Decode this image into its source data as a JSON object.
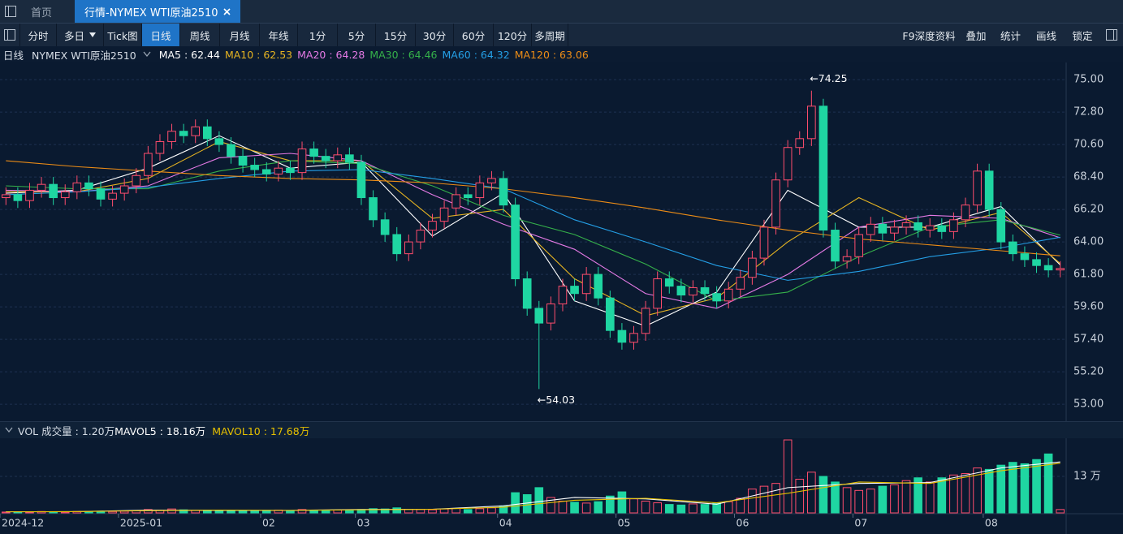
{
  "ui": {
    "tabs": [
      "首页",
      "行情-NYMEX WTI原油2510"
    ],
    "toolbar_left": [
      "分时",
      "多日",
      "Tick图",
      "日线",
      "周线",
      "月线",
      "年线",
      "1分",
      "5分",
      "15分",
      "30分",
      "60分",
      "120分",
      "多周期"
    ],
    "active_index": 3,
    "toolbar_right": [
      "F9深度资料",
      "叠加",
      "统计",
      "画线",
      "锁定"
    ]
  },
  "chart_data": [
    {
      "type": "candlestick",
      "title": "日线",
      "subtitle": "NYMEX WTI原油2510",
      "up_color": "#ff4d6d",
      "down_color": "#1fd6a2",
      "ylim": [
        52.07,
        75.72
      ],
      "yticks": [
        {
          "value": 75,
          "label": "75.00"
        },
        {
          "value": 72.8,
          "label": "72.80"
        },
        {
          "value": 70.6,
          "label": "70.60"
        },
        {
          "value": 68.4,
          "label": "68.40"
        },
        {
          "value": 66.2,
          "label": "66.20"
        },
        {
          "value": 64,
          "label": "64.00"
        },
        {
          "value": 61.8,
          "label": "61.80"
        },
        {
          "value": 59.6,
          "label": "59.60"
        },
        {
          "value": 57.4,
          "label": "57.40"
        },
        {
          "value": 55.2,
          "label": "55.20"
        },
        {
          "value": 53,
          "label": "53.00"
        }
      ],
      "grid": true,
      "open": [
        67.0,
        67.2,
        66.8,
        67.5,
        67.9,
        67.0,
        67.4,
        68.0,
        67.6,
        66.9,
        67.3,
        67.8,
        68.5,
        70.0,
        70.8,
        71.5,
        71.2,
        71.8,
        71.0,
        70.6,
        69.8,
        69.2,
        68.9,
        68.6,
        69.0,
        68.7,
        70.3,
        69.8,
        69.5,
        69.9,
        69.4,
        67.0,
        65.5,
        64.5,
        63.2,
        64.0,
        64.8,
        65.4,
        66.3,
        67.2,
        67.0,
        68.0,
        68.3,
        66.5,
        61.5,
        59.5,
        58.5,
        59.8,
        61.0,
        60.5,
        61.8,
        60.2,
        58.0,
        57.2,
        57.8,
        59.5,
        61.5,
        61.0,
        60.4,
        60.9,
        60.5,
        60.0,
        60.8,
        61.6,
        62.9,
        65.0,
        68.2,
        70.4,
        71.0,
        73.2,
        64.8,
        62.7,
        63.0,
        64.5,
        65.2,
        64.6,
        65.0,
        65.3,
        64.8,
        65.1,
        64.7,
        65.5,
        66.5,
        68.8,
        66.2,
        64.0,
        63.2,
        62.8,
        62.4,
        62.1
      ],
      "high": [
        67.7,
        67.7,
        68.0,
        68.4,
        68.4,
        67.9,
        68.5,
        68.5,
        68.1,
        67.8,
        68.3,
        69.0,
        70.5,
        71.3,
        72.0,
        72.0,
        72.3,
        72.3,
        71.5,
        71.1,
        70.3,
        69.7,
        69.4,
        69.5,
        69.5,
        70.8,
        70.8,
        70.3,
        70.4,
        70.4,
        69.9,
        67.5,
        66.0,
        65.0,
        64.5,
        65.3,
        65.9,
        66.8,
        67.7,
        67.7,
        68.5,
        68.8,
        68.8,
        67.0,
        62.0,
        60.0,
        60.3,
        61.5,
        61.5,
        62.3,
        62.3,
        60.7,
        58.5,
        58.3,
        60.0,
        62.0,
        62.0,
        61.5,
        61.4,
        61.4,
        61.0,
        61.3,
        62.1,
        63.4,
        65.5,
        68.7,
        70.9,
        71.5,
        74.25,
        73.7,
        65.3,
        63.5,
        65.0,
        65.7,
        65.7,
        65.5,
        65.8,
        65.8,
        65.6,
        65.6,
        66.0,
        67.0,
        69.3,
        69.3,
        66.7,
        64.5,
        63.7,
        63.3,
        62.9,
        62.7
      ],
      "low": [
        66.5,
        66.3,
        66.3,
        67.0,
        66.5,
        66.5,
        66.9,
        67.1,
        66.4,
        66.4,
        66.8,
        67.3,
        68.0,
        69.5,
        70.3,
        70.7,
        70.7,
        70.5,
        70.1,
        69.3,
        68.7,
        68.4,
        68.1,
        68.1,
        68.2,
        68.2,
        69.3,
        69.0,
        69.0,
        68.9,
        66.5,
        65.0,
        64.0,
        62.7,
        62.7,
        63.5,
        64.3,
        64.9,
        65.8,
        66.5,
        66.5,
        67.5,
        66.0,
        61.0,
        59.0,
        54.03,
        58.0,
        59.3,
        60.0,
        60.0,
        59.7,
        57.5,
        56.7,
        56.7,
        57.3,
        59.0,
        60.5,
        59.9,
        59.9,
        60.0,
        59.5,
        59.5,
        60.3,
        61.1,
        62.4,
        64.5,
        67.7,
        69.9,
        70.5,
        64.3,
        62.2,
        62.2,
        62.5,
        64.0,
        64.1,
        64.1,
        64.5,
        64.3,
        64.3,
        64.2,
        64.2,
        65.0,
        66.0,
        65.7,
        63.5,
        62.7,
        62.3,
        61.9,
        61.6,
        61.6
      ],
      "close": [
        67.2,
        66.8,
        67.5,
        67.9,
        67.0,
        67.4,
        68.0,
        67.6,
        66.9,
        67.3,
        67.8,
        68.5,
        70.0,
        70.8,
        71.5,
        71.2,
        71.8,
        71.0,
        70.6,
        69.8,
        69.2,
        68.9,
        68.6,
        69.0,
        68.7,
        70.3,
        69.8,
        69.5,
        69.9,
        69.4,
        67.0,
        65.5,
        64.5,
        63.2,
        64.0,
        64.8,
        65.4,
        66.3,
        67.2,
        67.0,
        68.0,
        68.3,
        66.5,
        61.5,
        59.5,
        58.5,
        59.8,
        61.0,
        60.5,
        61.8,
        60.2,
        58.0,
        57.2,
        57.8,
        59.5,
        61.5,
        61.0,
        60.4,
        60.9,
        60.5,
        60.0,
        60.8,
        61.6,
        62.9,
        65.0,
        68.2,
        70.4,
        71.0,
        73.2,
        64.8,
        62.7,
        63.0,
        64.5,
        65.2,
        64.6,
        65.0,
        65.3,
        64.8,
        65.1,
        64.7,
        65.5,
        66.5,
        68.8,
        66.2,
        64.0,
        63.2,
        62.8,
        62.4,
        62.1,
        62.2
      ],
      "series": [
        {
          "name": "MA5 : 62.44",
          "color": "#ffffff",
          "x": [
            0,
            6,
            12,
            18,
            24,
            30,
            36,
            42,
            48,
            54,
            60,
            66,
            72,
            78,
            84,
            89
          ],
          "values": [
            67.3,
            67.5,
            69.0,
            71.2,
            69.0,
            69.4,
            64.4,
            67.3,
            60.0,
            58.3,
            60.6,
            67.5,
            65.0,
            65.0,
            66.4,
            62.44
          ]
        },
        {
          "name": "MA10 : 62.53",
          "color": "#e6b422",
          "x": [
            0,
            6,
            12,
            18,
            24,
            30,
            36,
            42,
            48,
            54,
            60,
            66,
            72,
            78,
            84,
            89
          ],
          "values": [
            67.4,
            67.4,
            68.3,
            70.8,
            69.5,
            69.5,
            65.6,
            66.2,
            61.5,
            59.0,
            60.2,
            64.0,
            67.0,
            64.8,
            66.0,
            62.53
          ]
        },
        {
          "name": "MA20 : 64.28",
          "color": "#e57ae5",
          "x": [
            0,
            6,
            12,
            18,
            24,
            30,
            36,
            42,
            48,
            54,
            60,
            66,
            72,
            78,
            84,
            89
          ],
          "values": [
            67.5,
            67.4,
            67.8,
            69.7,
            70.0,
            69.5,
            67.2,
            65.2,
            63.5,
            60.5,
            59.5,
            61.8,
            65.0,
            65.8,
            65.6,
            64.28
          ]
        },
        {
          "name": "MA30 : 64.46",
          "color": "#35b04a",
          "x": [
            0,
            6,
            12,
            18,
            24,
            30,
            36,
            42,
            48,
            54,
            60,
            66,
            72,
            78,
            84,
            89
          ],
          "values": [
            67.8,
            67.6,
            67.6,
            68.8,
            69.5,
            69.3,
            67.8,
            65.8,
            64.5,
            62.5,
            60.0,
            60.6,
            63.0,
            65.0,
            65.5,
            64.46
          ]
        },
        {
          "name": "MA60 : 64.32",
          "color": "#249fe6",
          "x": [
            0,
            6,
            12,
            18,
            24,
            30,
            36,
            42,
            48,
            54,
            60,
            66,
            72,
            78,
            84,
            89
          ],
          "values": [
            67.2,
            67.4,
            67.7,
            68.3,
            68.8,
            68.9,
            68.3,
            67.6,
            65.5,
            64.0,
            62.4,
            61.4,
            62.0,
            63.0,
            63.6,
            64.32
          ]
        },
        {
          "name": "MA120 : 63.06",
          "color": "#ec8c16",
          "x": [
            0,
            6,
            12,
            18,
            24,
            30,
            36,
            42,
            48,
            54,
            60,
            66,
            72,
            78,
            84,
            89
          ],
          "values": [
            69.5,
            69.1,
            68.8,
            68.5,
            68.3,
            68.2,
            68.0,
            67.6,
            67.0,
            66.3,
            65.5,
            64.8,
            64.2,
            63.8,
            63.4,
            63.06
          ]
        }
      ],
      "annotations": [
        {
          "label": "←74.25",
          "value": 74.25,
          "x": 68
        },
        {
          "label": "←54.03",
          "value": 54.03,
          "x": 45
        }
      ]
    },
    {
      "type": "bar",
      "title": "VOL 成交量 : 1.20万",
      "ylim": [
        0,
        26.3
      ],
      "yticks": [
        {
          "value": 13,
          "label": "13 万"
        }
      ],
      "xticks": [
        {
          "value": 0,
          "label": "2024-12"
        },
        {
          "value": 10,
          "label": "2025-01"
        },
        {
          "value": 22,
          "label": "02"
        },
        {
          "value": 30,
          "label": "03"
        },
        {
          "value": 42,
          "label": "04"
        },
        {
          "value": 52,
          "label": "05"
        },
        {
          "value": 62,
          "label": "06"
        },
        {
          "value": 72,
          "label": "07"
        },
        {
          "value": 83,
          "label": "08"
        }
      ],
      "values": [
        0.3,
        0.4,
        0.3,
        0.5,
        0.4,
        0.3,
        0.5,
        0.4,
        0.6,
        0.5,
        0.6,
        0.8,
        1.2,
        1.0,
        1.4,
        1.1,
        0.9,
        1.0,
        0.8,
        0.9,
        0.7,
        0.8,
        0.9,
        1.0,
        0.8,
        1.2,
        0.9,
        0.8,
        1.0,
        0.9,
        1.2,
        1.5,
        1.4,
        1.8,
        1.3,
        1.2,
        1.1,
        1.4,
        1.6,
        1.2,
        1.5,
        1.8,
        2.5,
        7.2,
        6.5,
        9.0,
        5.5,
        4.2,
        3.8,
        3.5,
        4.0,
        6.0,
        7.5,
        5.0,
        4.2,
        3.6,
        3.0,
        2.8,
        3.2,
        3.0,
        3.5,
        4.0,
        5.2,
        8.5,
        9.5,
        10.5,
        26.0,
        12.0,
        14.5,
        13.0,
        11.0,
        9.0,
        8.0,
        8.5,
        9.5,
        10.0,
        11.5,
        12.5,
        11.0,
        12.5,
        13.5,
        14.0,
        16.0,
        15.5,
        17.0,
        18.0,
        17.5,
        19.0,
        21.0,
        1.2
      ],
      "series": [
        {
          "name": "MAVOL5 : 18.16万",
          "color": "#ffffff",
          "x": [
            0,
            6,
            12,
            18,
            24,
            30,
            36,
            42,
            48,
            54,
            60,
            66,
            72,
            78,
            84,
            89
          ],
          "values": [
            0.4,
            0.45,
            1.0,
            0.9,
            0.9,
            1.2,
            1.3,
            2.5,
            5.5,
            5.0,
            3.1,
            9.0,
            10.5,
            10.8,
            16.0,
            18.16
          ]
        },
        {
          "name": "MAVOL10 : 17.68万",
          "color": "#e6c000",
          "x": [
            0,
            6,
            12,
            18,
            24,
            30,
            36,
            42,
            48,
            54,
            60,
            66,
            72,
            78,
            84,
            89
          ],
          "values": [
            0.4,
            0.45,
            0.8,
            1.0,
            0.9,
            1.1,
            1.3,
            2.0,
            4.5,
            5.2,
            3.6,
            7.0,
            11.0,
            10.5,
            15.0,
            17.68
          ]
        }
      ]
    }
  ]
}
